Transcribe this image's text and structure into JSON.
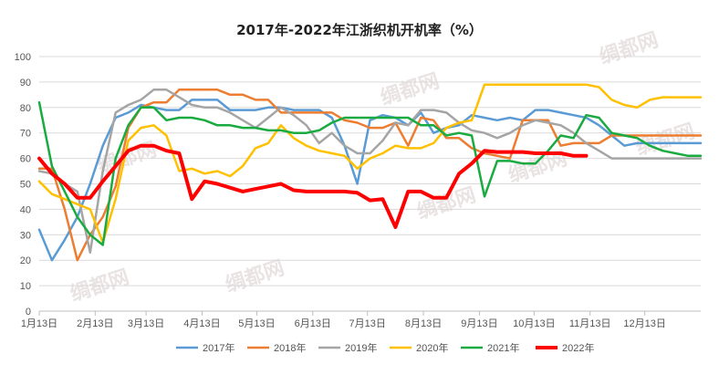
{
  "chart_data": {
    "type": "line",
    "title": "2017年-2022年江浙织机开机率（%）",
    "ylim": [
      0,
      100
    ],
    "yticks": [
      0,
      10,
      20,
      30,
      40,
      50,
      60,
      70,
      80,
      90,
      100
    ],
    "xlim": [
      0,
      52
    ],
    "xticks": [
      {
        "x": 0,
        "label": "1月13日"
      },
      {
        "x": 4.4,
        "label": "2月13日"
      },
      {
        "x": 8.4,
        "label": "3月13日"
      },
      {
        "x": 12.8,
        "label": "4月13日"
      },
      {
        "x": 17.1,
        "label": "5月13日"
      },
      {
        "x": 21.5,
        "label": "6月13日"
      },
      {
        "x": 25.8,
        "label": "7月13日"
      },
      {
        "x": 30.2,
        "label": "8月13日"
      },
      {
        "x": 34.6,
        "label": "9月13日"
      },
      {
        "x": 38.9,
        "label": "10月13日"
      },
      {
        "x": 43.3,
        "label": "11月13日"
      },
      {
        "x": 47.6,
        "label": "12月13日"
      }
    ],
    "grid": true,
    "legend_position": "bottom",
    "series": [
      {
        "name": "2017年",
        "color": "#5b9bd5",
        "width": 2.5,
        "x": [
          0,
          1,
          2,
          3,
          4,
          5,
          6,
          7,
          8,
          9,
          10,
          11,
          12,
          13,
          14,
          15,
          16,
          17,
          18,
          19,
          20,
          21,
          22,
          23,
          24,
          25,
          26,
          27,
          28,
          29,
          30,
          31,
          32,
          33,
          34,
          35,
          36,
          37,
          38,
          39,
          40,
          41,
          42,
          43,
          44,
          45,
          46,
          47,
          48,
          49,
          50,
          51,
          52
        ],
        "y": [
          32,
          20,
          28,
          37,
          50,
          65,
          76,
          78,
          81,
          80,
          79,
          79,
          83,
          83,
          83,
          79,
          79,
          79,
          80,
          80,
          79,
          79,
          79,
          76,
          65,
          50,
          75,
          77,
          76,
          73,
          78,
          70,
          72,
          73,
          77,
          76,
          75,
          76,
          75,
          79,
          79,
          78,
          77,
          76,
          73,
          69,
          65,
          66,
          66,
          66,
          66,
          66,
          66
        ]
      },
      {
        "name": "2018年",
        "color": "#ed7d31",
        "width": 2.5,
        "x": [
          0,
          1,
          2,
          3,
          4,
          5,
          6,
          7,
          8,
          9,
          10,
          11,
          12,
          13,
          14,
          15,
          16,
          17,
          18,
          19,
          20,
          21,
          22,
          23,
          24,
          25,
          26,
          27,
          28,
          29,
          30,
          31,
          32,
          33,
          34,
          35,
          36,
          37,
          38,
          39,
          40,
          41,
          42,
          43,
          44,
          45,
          46,
          47,
          48,
          49,
          50,
          51,
          52
        ],
        "y": [
          56,
          56,
          40,
          20,
          30,
          37,
          49,
          72,
          80,
          82,
          82,
          87,
          87,
          87,
          87,
          85,
          85,
          83,
          83,
          78,
          78,
          78,
          78,
          78,
          75,
          74,
          72,
          72,
          74,
          65,
          76,
          75,
          68,
          68,
          64,
          62,
          61,
          60,
          75,
          75,
          75,
          65,
          66,
          66,
          66,
          69,
          69,
          69,
          69,
          69,
          69,
          69,
          69
        ]
      },
      {
        "name": "2019年",
        "color": "#a5a5a5",
        "width": 2.5,
        "x": [
          0,
          1,
          2,
          3,
          4,
          5,
          6,
          7,
          8,
          9,
          10,
          11,
          12,
          13,
          14,
          15,
          16,
          17,
          18,
          19,
          20,
          21,
          22,
          23,
          24,
          25,
          26,
          27,
          28,
          29,
          30,
          31,
          32,
          33,
          34,
          35,
          36,
          37,
          38,
          39,
          40,
          41,
          42,
          43,
          44,
          45,
          46,
          47,
          48,
          49,
          50,
          51,
          52
        ],
        "y": [
          55,
          54,
          50,
          47,
          23,
          55,
          78,
          81,
          83,
          87,
          87,
          84,
          81,
          80,
          80,
          78,
          75,
          72,
          76,
          80,
          77,
          73,
          66,
          70,
          65,
          62,
          62,
          67,
          74,
          73,
          79,
          79,
          78,
          74,
          71,
          70,
          68,
          70,
          73,
          75,
          74,
          73,
          70,
          66,
          63,
          60,
          60,
          60,
          60,
          60,
          60,
          60,
          60
        ]
      },
      {
        "name": "2020年",
        "color": "#ffc000",
        "width": 2.5,
        "x": [
          0,
          1,
          2,
          3,
          4,
          5,
          6,
          7,
          8,
          9,
          10,
          11,
          12,
          13,
          14,
          15,
          16,
          17,
          18,
          19,
          20,
          21,
          22,
          23,
          24,
          25,
          26,
          27,
          28,
          29,
          30,
          31,
          32,
          33,
          34,
          35,
          36,
          37,
          38,
          39,
          40,
          41,
          42,
          43,
          44,
          45,
          46,
          47,
          48,
          49,
          50,
          51,
          52
        ],
        "y": [
          51,
          46,
          44,
          42,
          40,
          27,
          44,
          67,
          72,
          73,
          69,
          55,
          56,
          54,
          55,
          53,
          57,
          64,
          66,
          73,
          68,
          65,
          63,
          62,
          61,
          56,
          60,
          62,
          65,
          64,
          64,
          66,
          72,
          74,
          75,
          89,
          89,
          89,
          89,
          89,
          89,
          89,
          89,
          89,
          88,
          83,
          81,
          80,
          83,
          84,
          84,
          84,
          84
        ]
      },
      {
        "name": "2021年",
        "color": "#1aab40",
        "width": 2.5,
        "x": [
          0,
          1,
          2,
          3,
          4,
          5,
          6,
          7,
          8,
          9,
          10,
          11,
          12,
          13,
          14,
          15,
          16,
          17,
          18,
          19,
          20,
          21,
          22,
          23,
          24,
          25,
          26,
          27,
          28,
          29,
          30,
          31,
          32,
          33,
          34,
          35,
          36,
          37,
          38,
          39,
          40,
          41,
          42,
          43,
          44,
          45,
          46,
          47,
          48,
          49,
          50,
          51,
          52
        ],
        "y": [
          82,
          57,
          47,
          37,
          30,
          26,
          60,
          73,
          80,
          80,
          75,
          76,
          76,
          75,
          73,
          73,
          72,
          72,
          71,
          71,
          70,
          70,
          71,
          74,
          76,
          76,
          76,
          76,
          76,
          76,
          73,
          73,
          69,
          70,
          69,
          45,
          59,
          59,
          58,
          58,
          63,
          69,
          68,
          77,
          76,
          70,
          69,
          68,
          65,
          63,
          62,
          61,
          61
        ]
      },
      {
        "name": "2022年",
        "color": "#ff0000",
        "width": 4,
        "x": [
          0,
          1,
          2,
          3,
          4,
          5,
          6,
          7,
          8,
          9,
          10,
          11,
          12,
          13,
          14,
          15,
          16,
          17,
          18,
          19,
          20,
          21,
          22,
          23,
          24,
          25,
          26,
          27,
          28,
          29,
          30,
          31,
          32,
          33,
          34,
          35,
          36,
          37,
          38,
          39,
          40,
          41,
          42,
          43
        ],
        "y": [
          60,
          54,
          50,
          44.5,
          44.5,
          51,
          57,
          63,
          65,
          65,
          63,
          62,
          44,
          51,
          50,
          48.5,
          47,
          48,
          49,
          50,
          47.5,
          47,
          47,
          47,
          47,
          46.5,
          43.5,
          44,
          33,
          47,
          47,
          44.5,
          44.5,
          54,
          58,
          63,
          62.5,
          62.5,
          62.5,
          62,
          62,
          62,
          61,
          61
        ]
      }
    ],
    "watermark": "绸都网"
  }
}
